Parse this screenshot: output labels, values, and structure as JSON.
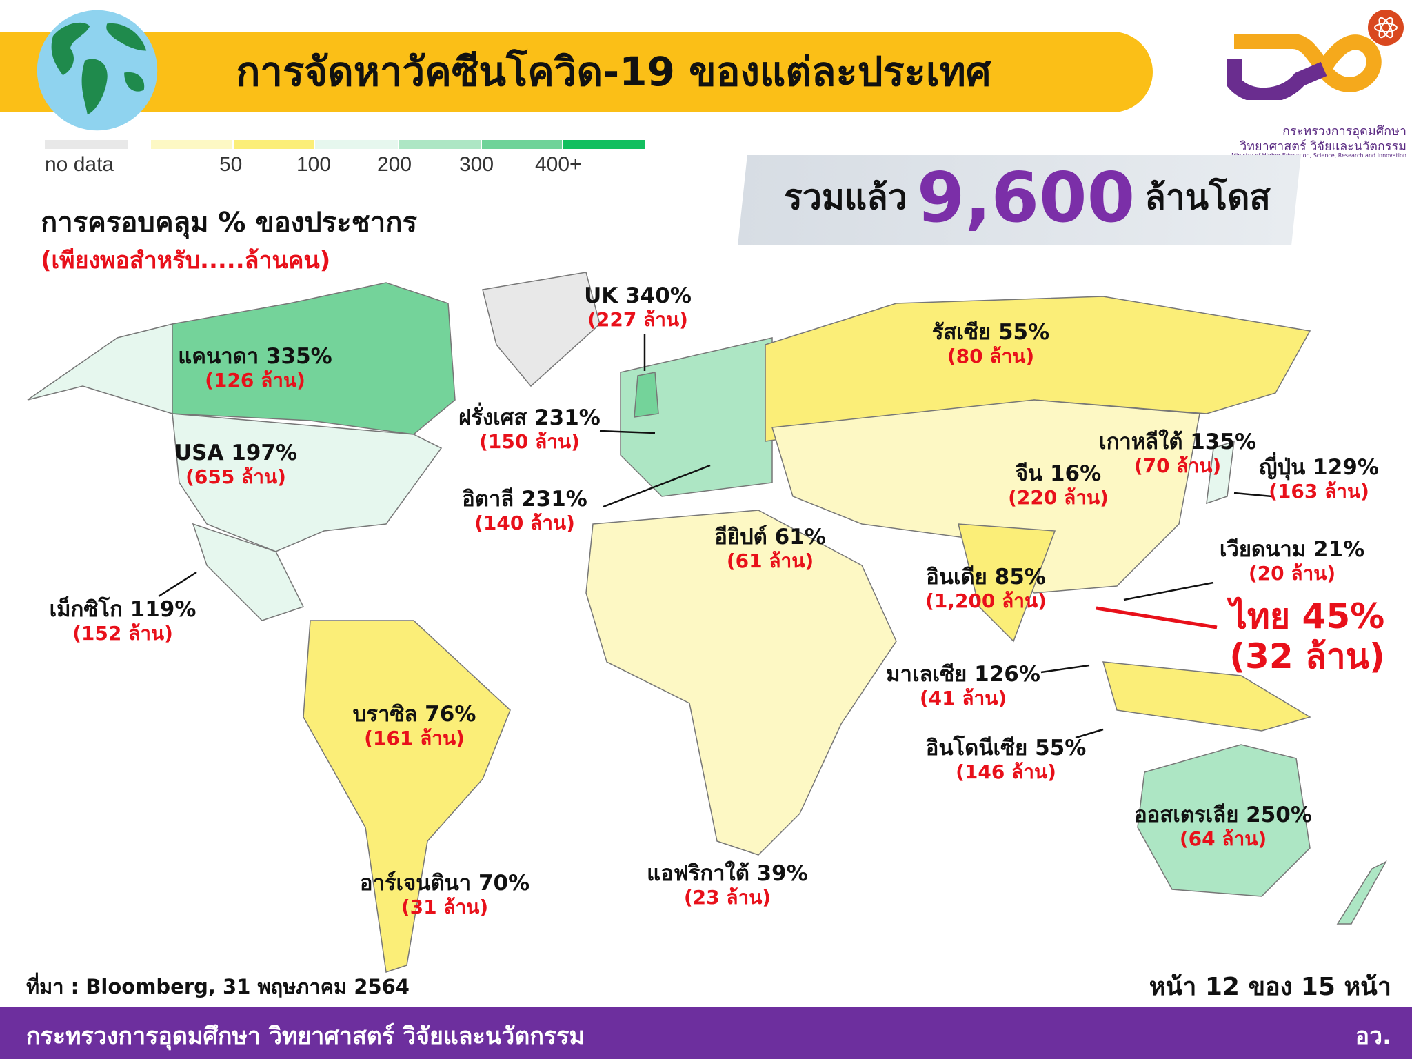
{
  "header": {
    "title": "การจัดหาวัคซีนโควิด-19 ของแต่ละประเทศ"
  },
  "logo": {
    "line1": "กระทรวงการอุดมศึกษา",
    "line2": "วิทยาศาสตร์ วิจัยและนวัตกรรม",
    "line3": "Ministry of Higher Education, Science, Research and Innovation"
  },
  "legend": {
    "no_data": "no data",
    "ticks": [
      "50",
      "100",
      "200",
      "300",
      "400+"
    ],
    "colors": {
      "no_data": "#e8e8e8",
      "bins": [
        "#fdf8c4",
        "#fbee78",
        "#e6f7ee",
        "#ade6c4",
        "#6fd399",
        "#12bf5f"
      ]
    }
  },
  "coverage": {
    "title": "การครอบคลุม % ของประชากร",
    "subtitle": "(เพียงพอสำหรับ.....ล้านคน)"
  },
  "total": {
    "prefix": "รวมแล้ว",
    "value": "9,600",
    "suffix": "ล้านโดส"
  },
  "countries": [
    {
      "name": "UK 340%",
      "amount": "(227 ล้าน)"
    },
    {
      "name": "แคนาดา 335%",
      "amount": "(126 ล้าน)"
    },
    {
      "name": "USA 197%",
      "amount": "(655 ล้าน)"
    },
    {
      "name": "ฝรั่งเศส 231%",
      "amount": "(150 ล้าน)"
    },
    {
      "name": "อิตาลี 231%",
      "amount": "(140 ล้าน)"
    },
    {
      "name": "รัสเซีย 55%",
      "amount": "(80 ล้าน)"
    },
    {
      "name": "เกาหลีใต้ 135%",
      "amount": "(70 ล้าน)"
    },
    {
      "name": "ญี่ปุ่น 129%",
      "amount": "(163 ล้าน)"
    },
    {
      "name": "จีน 16%",
      "amount": "(220 ล้าน)"
    },
    {
      "name": "เวียดนาม 21%",
      "amount": "(20 ล้าน)"
    },
    {
      "name": "อียิปต์ 61%",
      "amount": "(61 ล้าน)"
    },
    {
      "name": "อินเดีย 85%",
      "amount": "(1,200 ล้าน)"
    },
    {
      "name": "ไทย 45%",
      "amount": "(32 ล้าน)"
    },
    {
      "name": "เม็กซิโก 119%",
      "amount": "(152 ล้าน)"
    },
    {
      "name": "มาเลเซีย 126%",
      "amount": "(41 ล้าน)"
    },
    {
      "name": "อินโดนีเซีย 55%",
      "amount": "(146 ล้าน)"
    },
    {
      "name": "บราซิล 76%",
      "amount": "(161 ล้าน)"
    },
    {
      "name": "ออสเตรเลีย 250%",
      "amount": "(64 ล้าน)"
    },
    {
      "name": "แอฟริกาใต้ 39%",
      "amount": "(23 ล้าน)"
    },
    {
      "name": "อาร์เจนตินา 70%",
      "amount": "(31 ล้าน)"
    }
  ],
  "source": "ที่มา : Bloomberg, 31 พฤษภาคม 2564",
  "page": "หน้า 12 ของ 15 หน้า",
  "footer": {
    "ministry": "กระทรวงการอุดมศึกษา วิทยาศาสตร์ วิจัยและนวัตกรรม",
    "abbr": "อว."
  },
  "colors": {
    "header": "#fbbf17",
    "footer": "#6d2f9e",
    "accent_purple": "#7b2fa8",
    "accent_red": "#e8101a"
  }
}
